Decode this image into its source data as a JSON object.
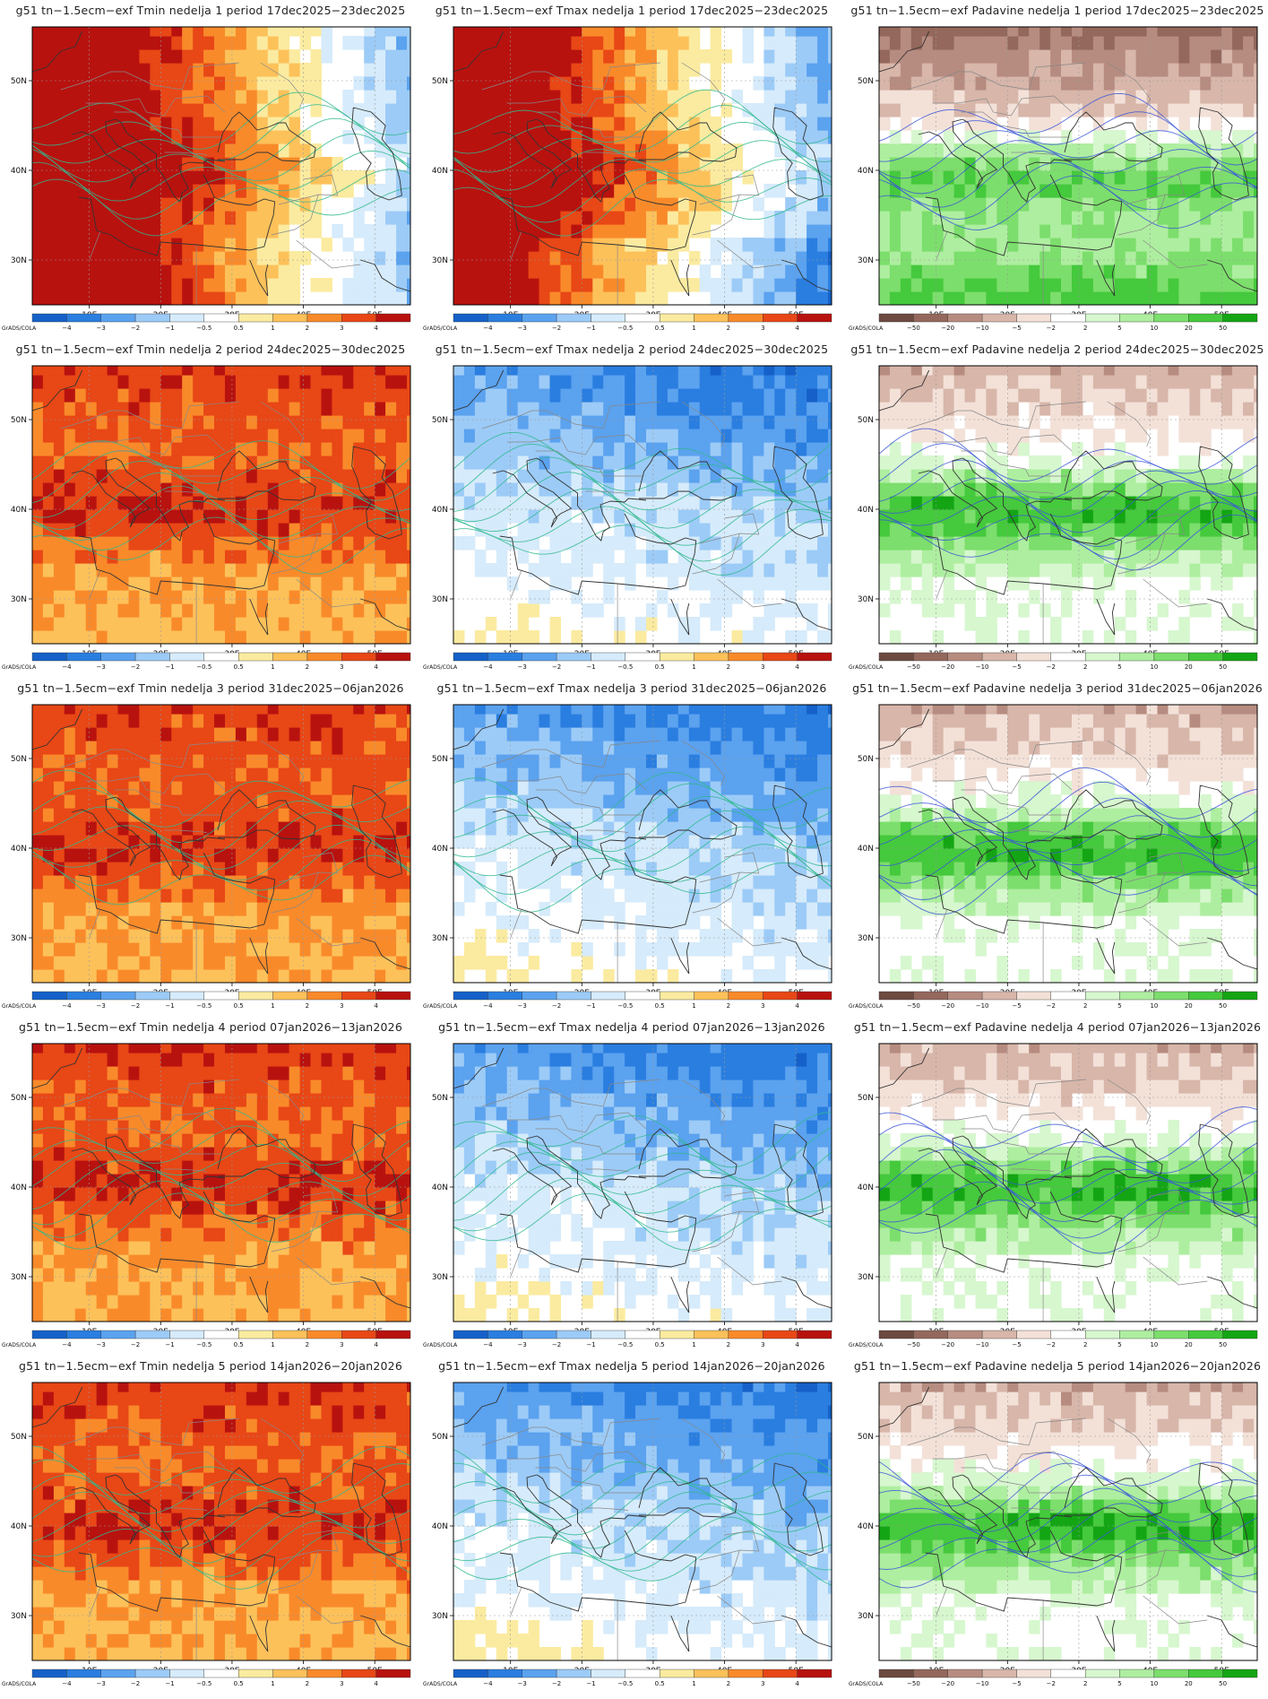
{
  "figure": {
    "title_prefix": "g51 tn−1.5ecm−exf",
    "weeks": [
      {
        "n": 1,
        "period": "17dec2025−23dec2025"
      },
      {
        "n": 2,
        "period": "24dec2025−30dec2025"
      },
      {
        "n": 3,
        "period": "31dec2025−06jan2026"
      },
      {
        "n": 4,
        "period": "07jan2026−13jan2026"
      },
      {
        "n": 5,
        "period": "14jan2026−20jan2026"
      }
    ],
    "variables": [
      "Tmin",
      "Tmax",
      "Padavine"
    ],
    "week_word": "nedelja",
    "period_word": "period",
    "lon_labels": [
      "10E",
      "20E",
      "30E",
      "40E",
      "50E"
    ],
    "lat_labels": [
      "50N",
      "40N",
      "30N"
    ],
    "colorbar_label": "GrADS/COLA",
    "temp_colorbar": {
      "ticks": [
        "−4",
        "−3",
        "−2",
        "−1",
        "−0.5",
        "0.5",
        "1",
        "2",
        "3",
        "4"
      ],
      "colors": [
        "#1561c9",
        "#2a7ee0",
        "#5ba2ef",
        "#9ccbf7",
        "#d6ebfb",
        "#ffffff",
        "#fbeba0",
        "#fdc15a",
        "#f98a2a",
        "#e84716",
        "#b8120f"
      ]
    },
    "precip_colorbar": {
      "ticks": [
        "−50",
        "−20",
        "−10",
        "−5",
        "−2",
        "2",
        "5",
        "10",
        "20",
        "50"
      ],
      "colors": [
        "#6d4a40",
        "#94685c",
        "#b78c80",
        "#d8b6aa",
        "#f3e1d8",
        "#ffffff",
        "#d7f7cf",
        "#aeeea0",
        "#7cde6c",
        "#45c93d",
        "#14a514"
      ]
    },
    "panels": [
      {
        "week": 1,
        "var": "Tmin",
        "anomaly_character": "warm west, cool east"
      },
      {
        "week": 1,
        "var": "Tmax",
        "anomaly_character": "warm central, cool east"
      },
      {
        "week": 1,
        "var": "Padavine",
        "anomaly_character": "dry north, wet south"
      },
      {
        "week": 2,
        "var": "Tmin",
        "anomaly_character": "warm broad"
      },
      {
        "week": 2,
        "var": "Tmax",
        "anomaly_character": "cool broad"
      },
      {
        "week": 2,
        "var": "Padavine",
        "anomaly_character": "wet Mediterranean"
      },
      {
        "week": 3,
        "var": "Tmin",
        "anomaly_character": "warm broad"
      },
      {
        "week": 3,
        "var": "Tmax",
        "anomaly_character": "cool broad"
      },
      {
        "week": 3,
        "var": "Padavine",
        "anomaly_character": "wet south, dry northwest"
      },
      {
        "week": 4,
        "var": "Tmin",
        "anomaly_character": "warm broad"
      },
      {
        "week": 4,
        "var": "Tmax",
        "anomaly_character": "cool broad"
      },
      {
        "week": 4,
        "var": "Padavine",
        "anomaly_character": "wet Mediterranean"
      },
      {
        "week": 5,
        "var": "Tmin",
        "anomaly_character": "warm broad"
      },
      {
        "week": 5,
        "var": "Tmax",
        "anomaly_character": "cool broad"
      },
      {
        "week": 5,
        "var": "Padavine",
        "anomaly_character": "wet south"
      }
    ]
  }
}
